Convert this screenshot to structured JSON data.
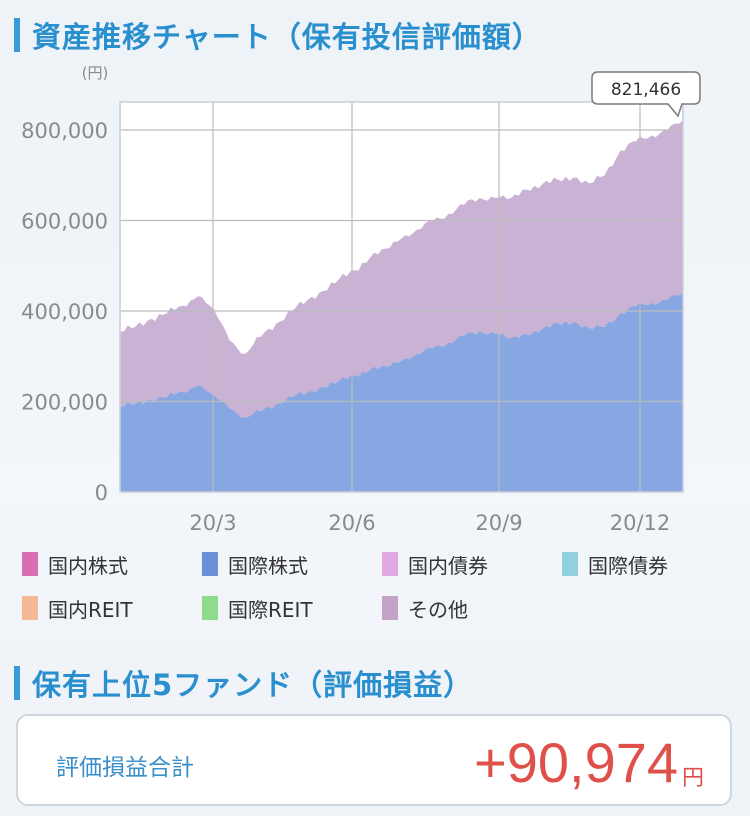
{
  "section1": {
    "title": "資産推移チャート（保有投信評価額）"
  },
  "section2": {
    "title": "保有上位5ファンド（評価損益）"
  },
  "colors": {
    "accent": "#2a8fce",
    "intl_stock": "#7fa2e0",
    "other": "#c7aed2",
    "gain": "#e0504a"
  },
  "chart_data": {
    "type": "area",
    "stacked": true,
    "y_unit": "(円)",
    "ylim": [
      0,
      800000
    ],
    "yticks": [
      0,
      200000,
      400000,
      600000,
      800000
    ],
    "ytick_labels": [
      "0",
      "200,000",
      "400,000",
      "600,000",
      "800,000"
    ],
    "x_start": "2020-01",
    "x_end": "2020-12-end",
    "xticks": [
      "20/3",
      "20/6",
      "20/9",
      "20/12"
    ],
    "grid": true,
    "callout": "821,466",
    "series": [
      {
        "name": "国際株式",
        "color": "#7fa2e0",
        "points": [
          [
            0,
            190000
          ],
          [
            1,
            195000
          ],
          [
            2,
            205000
          ],
          [
            3,
            210000
          ],
          [
            4,
            222000
          ],
          [
            5,
            235000
          ],
          [
            6,
            215000
          ],
          [
            7,
            185000
          ],
          [
            8,
            165000
          ],
          [
            9,
            178000
          ],
          [
            10,
            195000
          ],
          [
            11,
            210000
          ],
          [
            12,
            220000
          ],
          [
            13,
            232000
          ],
          [
            14,
            245000
          ],
          [
            15,
            258000
          ],
          [
            16,
            270000
          ],
          [
            17,
            278000
          ],
          [
            18,
            290000
          ],
          [
            19,
            305000
          ],
          [
            20,
            318000
          ],
          [
            21,
            330000
          ],
          [
            22,
            345000
          ],
          [
            23,
            355000
          ],
          [
            24,
            350000
          ],
          [
            25,
            340000
          ],
          [
            26,
            348000
          ],
          [
            27,
            360000
          ],
          [
            28,
            372000
          ],
          [
            29,
            375000
          ],
          [
            30,
            362000
          ],
          [
            31,
            365000
          ],
          [
            32,
            395000
          ],
          [
            33,
            410000
          ],
          [
            34,
            418000
          ],
          [
            35,
            425000
          ],
          [
            36,
            440000
          ]
        ]
      },
      {
        "name": "その他",
        "color": "#c7aed2",
        "points": [
          [
            0,
            165000
          ],
          [
            1,
            170000
          ],
          [
            2,
            178000
          ],
          [
            3,
            185000
          ],
          [
            4,
            190000
          ],
          [
            5,
            198000
          ],
          [
            6,
            190000
          ],
          [
            7,
            150000
          ],
          [
            8,
            140000
          ],
          [
            9,
            165000
          ],
          [
            10,
            178000
          ],
          [
            11,
            190000
          ],
          [
            12,
            205000
          ],
          [
            13,
            212000
          ],
          [
            14,
            225000
          ],
          [
            15,
            232000
          ],
          [
            16,
            248000
          ],
          [
            17,
            260000
          ],
          [
            18,
            270000
          ],
          [
            19,
            275000
          ],
          [
            20,
            280000
          ],
          [
            21,
            285000
          ],
          [
            22,
            290000
          ],
          [
            23,
            295000
          ],
          [
            24,
            300000
          ],
          [
            25,
            310000
          ],
          [
            26,
            320000
          ],
          [
            27,
            320000
          ],
          [
            28,
            318000
          ],
          [
            29,
            320000
          ],
          [
            30,
            320000
          ],
          [
            31,
            335000
          ],
          [
            32,
            360000
          ],
          [
            33,
            365000
          ],
          [
            34,
            370000
          ],
          [
            35,
            375000
          ],
          [
            36,
            381466
          ]
        ]
      }
    ]
  },
  "legend": [
    {
      "label": "国内株式",
      "color": "#d86fb4"
    },
    {
      "label": "国際株式",
      "color": "#6a90d8"
    },
    {
      "label": "国内債券",
      "color": "#e2a8e2"
    },
    {
      "label": "国際債券",
      "color": "#92d0de"
    },
    {
      "label": "国内REIT",
      "color": "#f7b896"
    },
    {
      "label": "国際REIT",
      "color": "#8edb8e"
    },
    {
      "label": "その他",
      "color": "#c3a2c8"
    }
  ],
  "summary": {
    "label": "評価損益合計",
    "value": "+90,974",
    "unit": "円"
  }
}
